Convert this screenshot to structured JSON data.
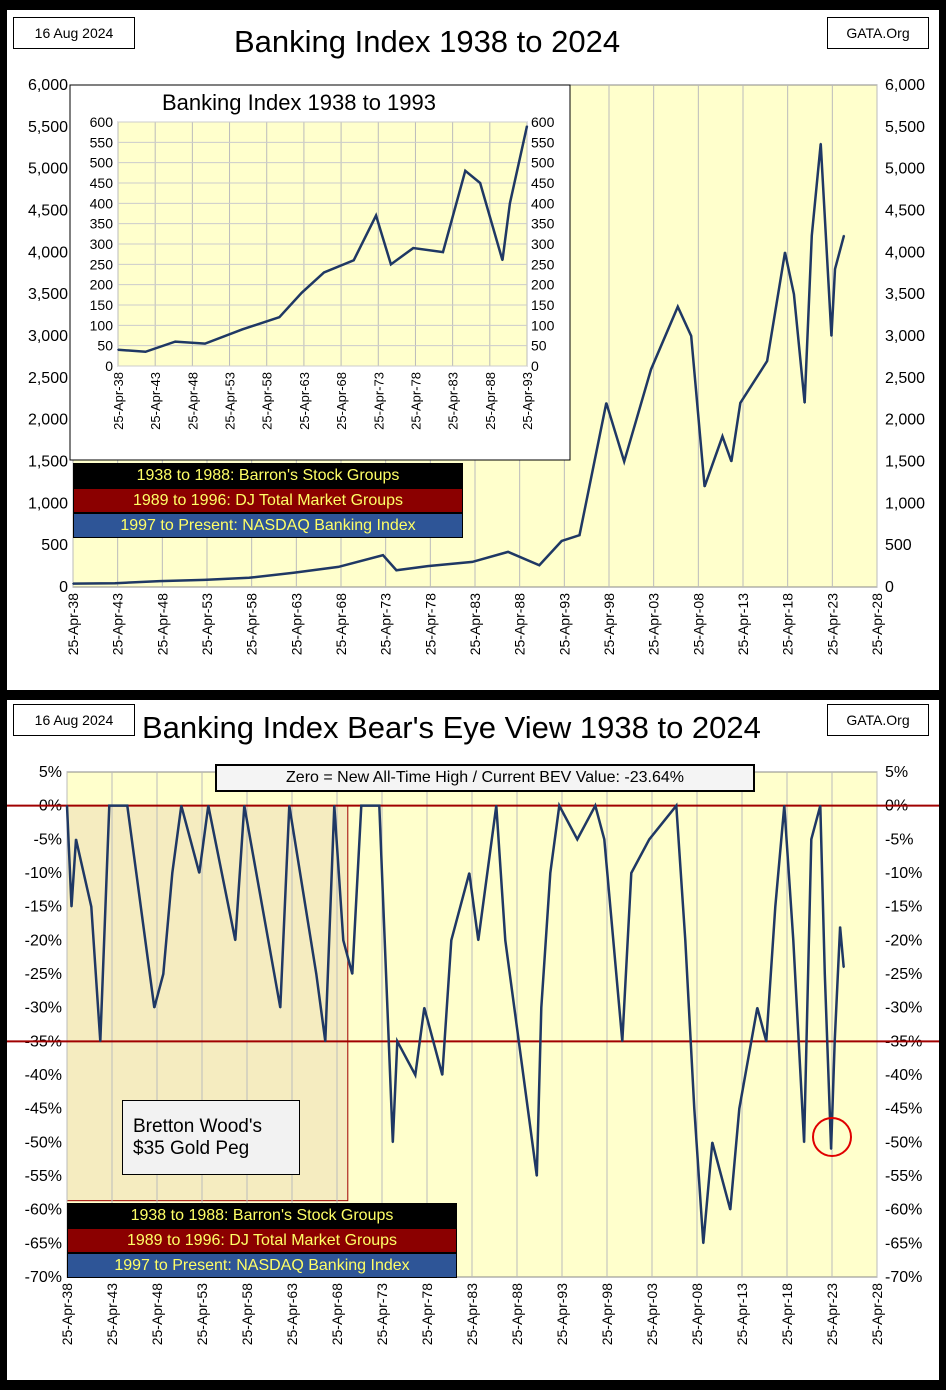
{
  "top": {
    "date": "16 Aug 2024",
    "source": "GATA.Org"
  },
  "bottom": {
    "date": "16 Aug 2024",
    "source": "GATA.Org",
    "annotation": "Zero = New All-Time High / Current BEV Value:  -23.64%",
    "bretton_label_1": "Bretton Wood's",
    "bretton_label_2": "$35 Gold Peg"
  },
  "legend": [
    "1938 to 1988: Barron's Stock Groups",
    "1989 to 1996: DJ Total Market Groups",
    "1997 to Present: NASDAQ Banking Index"
  ],
  "colors": {
    "line": "#1f3864",
    "plot_bg": "#ffffcc",
    "ref_line": "#a00000",
    "legend1": "#000000",
    "legend2": "#8b0000",
    "legend3": "#2e5597",
    "legend_text": "#ffff66"
  },
  "chart_data": [
    {
      "type": "line",
      "title": "Banking Index 1938 to 2024",
      "ylim": [
        0,
        6000
      ],
      "yticks": [
        "0",
        "500",
        "1,000",
        "1,500",
        "2,000",
        "2,500",
        "3,000",
        "3,500",
        "4,000",
        "4,500",
        "5,000",
        "5,500",
        "6,000"
      ],
      "xticks": [
        "25-Apr-38",
        "25-Apr-43",
        "25-Apr-48",
        "25-Apr-53",
        "25-Apr-58",
        "25-Apr-63",
        "25-Apr-68",
        "25-Apr-73",
        "25-Apr-78",
        "25-Apr-83",
        "25-Apr-88",
        "25-Apr-93",
        "25-Apr-98",
        "25-Apr-03",
        "25-Apr-08",
        "25-Apr-13",
        "25-Apr-18",
        "25-Apr-23",
        "25-Apr-28"
      ],
      "xlim": [
        1938.3,
        2028.3
      ],
      "x": [
        1938.3,
        1943,
        1948,
        1953,
        1958,
        1963,
        1968,
        1973,
        1974.5,
        1978,
        1983,
        1987,
        1990.5,
        1993,
        1995,
        1998,
        2000,
        2003,
        2006,
        2007.5,
        2009,
        2011,
        2012,
        2013,
        2016,
        2018,
        2019,
        2020.2,
        2021,
        2022,
        2023.2,
        2023.6,
        2024.6
      ],
      "y": [
        40,
        45,
        70,
        85,
        110,
        170,
        240,
        380,
        200,
        250,
        300,
        420,
        260,
        550,
        620,
        2200,
        1500,
        2600,
        3350,
        3000,
        1200,
        1800,
        1500,
        2200,
        2700,
        4000,
        3500,
        2200,
        4200,
        5300,
        3000,
        3800,
        4200
      ]
    },
    {
      "type": "line",
      "title": "Banking Index 1938 to 1993",
      "ylim": [
        0,
        600
      ],
      "yticks": [
        "0",
        "50",
        "100",
        "150",
        "200",
        "250",
        "300",
        "350",
        "400",
        "450",
        "500",
        "550",
        "600"
      ],
      "xticks": [
        "25-Apr-38",
        "25-Apr-43",
        "25-Apr-48",
        "25-Apr-53",
        "25-Apr-58",
        "25-Apr-63",
        "25-Apr-68",
        "25-Apr-73",
        "25-Apr-78",
        "25-Apr-83",
        "25-Apr-88",
        "25-Apr-93"
      ],
      "xlim": [
        1938.3,
        1993.3
      ],
      "x": [
        1938.3,
        1942,
        1946,
        1950,
        1955,
        1960,
        1963,
        1966,
        1970,
        1973,
        1975,
        1978,
        1982,
        1985,
        1987,
        1990,
        1991,
        1993.3
      ],
      "y": [
        40,
        35,
        60,
        55,
        90,
        120,
        180,
        230,
        260,
        370,
        250,
        290,
        280,
        480,
        450,
        260,
        400,
        590
      ]
    },
    {
      "type": "line",
      "title": "Banking Index Bear's Eye View 1938 to 2024",
      "ylim": [
        -70,
        5
      ],
      "yticks": [
        "-70%",
        "-65%",
        "-60%",
        "-55%",
        "-50%",
        "-45%",
        "-40%",
        "-35%",
        "-30%",
        "-25%",
        "-20%",
        "-15%",
        "-10%",
        "-5%",
        "0%",
        "5%"
      ],
      "xticks": [
        "25-Apr-38",
        "25-Apr-43",
        "25-Apr-48",
        "25-Apr-53",
        "25-Apr-58",
        "25-Apr-63",
        "25-Apr-68",
        "25-Apr-73",
        "25-Apr-78",
        "25-Apr-83",
        "25-Apr-88",
        "25-Apr-93",
        "25-Apr-98",
        "25-Apr-03",
        "25-Apr-08",
        "25-Apr-13",
        "25-Apr-18",
        "25-Apr-23",
        "25-Apr-28"
      ],
      "xlim": [
        1938.3,
        2028.3
      ],
      "reference_lines": [
        0,
        -35
      ],
      "x": [
        1938.3,
        1938.8,
        1939.3,
        1941,
        1942,
        1943,
        1945,
        1946,
        1947,
        1948,
        1949,
        1950,
        1951,
        1953,
        1954,
        1957,
        1958,
        1960,
        1962,
        1963,
        1966,
        1967,
        1968,
        1969,
        1970,
        1971,
        1973,
        1974.5,
        1975,
        1977,
        1978,
        1980,
        1981,
        1983,
        1984,
        1986,
        1987,
        1988,
        1990.5,
        1991,
        1992,
        1993,
        1995,
        1997,
        1998,
        2000,
        2001,
        2003,
        2006,
        2007,
        2008,
        2009,
        2010,
        2011,
        2012,
        2013,
        2015,
        2016,
        2017,
        2018,
        2019,
        2020.2,
        2021,
        2022,
        2022.5,
        2023.2,
        2023.6,
        2024.2,
        2024.6
      ],
      "y": [
        0,
        -15,
        -5,
        -15,
        -35,
        0,
        0,
        -10,
        -20,
        -30,
        -25,
        -10,
        0,
        -10,
        0,
        -20,
        0,
        -15,
        -30,
        0,
        -25,
        -35,
        0,
        -20,
        -25,
        0,
        0,
        -50,
        -35,
        -40,
        -30,
        -40,
        -20,
        -10,
        -20,
        0,
        -20,
        -30,
        -55,
        -30,
        -10,
        0,
        -5,
        0,
        -5,
        -35,
        -10,
        -5,
        0,
        -20,
        -45,
        -65,
        -50,
        -55,
        -60,
        -45,
        -30,
        -35,
        -15,
        0,
        -20,
        -50,
        -5,
        0,
        -25,
        -51,
        -35,
        -18,
        -24
      ]
    }
  ]
}
